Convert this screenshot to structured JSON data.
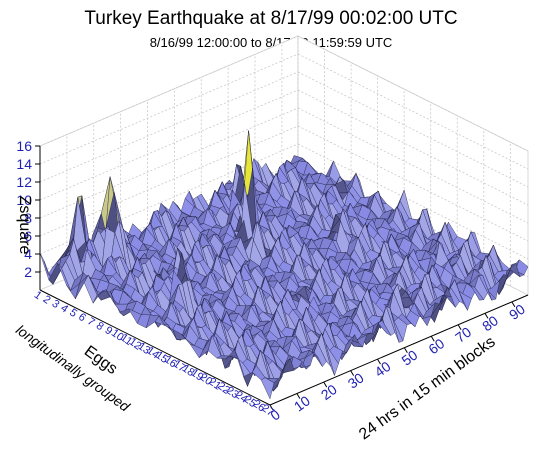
{
  "chart_data": {
    "type": "surface3d",
    "title": "Turkey Earthquake at 8/17/99 00:02:00 UTC",
    "subtitle": "8/16/99 12:00:00 to 8/17/99 11:59:59 UTC",
    "zlabel": "Zsquare",
    "xlabel": "24 hrs in 15 min blocks",
    "ylabel_line1": "Eggs",
    "ylabel_line2": "longitudinally grouped",
    "zticks": [
      "2",
      "4",
      "6",
      "8",
      "10",
      "12",
      "14",
      "16"
    ],
    "zlim": [
      0,
      16
    ],
    "xticks": [
      "0",
      "10",
      "20",
      "30",
      "40",
      "50",
      "60",
      "70",
      "80",
      "90"
    ],
    "xlim": [
      0,
      96
    ],
    "yticks": [
      "1",
      "2",
      "3",
      "4",
      "5",
      "6",
      "7",
      "8",
      "9",
      "10",
      "11",
      "12",
      "13",
      "14",
      "15",
      "16",
      "17",
      "18",
      "19",
      "20",
      "21",
      "22",
      "23",
      "24",
      "25",
      "26",
      "27"
    ],
    "ylim": [
      1,
      27
    ],
    "peaks": [
      {
        "x": 48,
        "y": 10,
        "z": 15.5
      },
      {
        "x": 20,
        "y": 3,
        "z": 12.5
      },
      {
        "x": 8,
        "y": 3,
        "z": 11.0
      },
      {
        "x": 15,
        "y": 12,
        "z": 9.0
      },
      {
        "x": 60,
        "y": 5,
        "z": 8.5
      },
      {
        "x": 70,
        "y": 14,
        "z": 6.5
      },
      {
        "x": 35,
        "y": 20,
        "z": 6.0
      },
      {
        "x": 80,
        "y": 22,
        "z": 5.0
      },
      {
        "x": 55,
        "y": 25,
        "z": 5.5
      },
      {
        "x": 88,
        "y": 8,
        "z": 4.5
      }
    ],
    "baseline": 2.5
  }
}
